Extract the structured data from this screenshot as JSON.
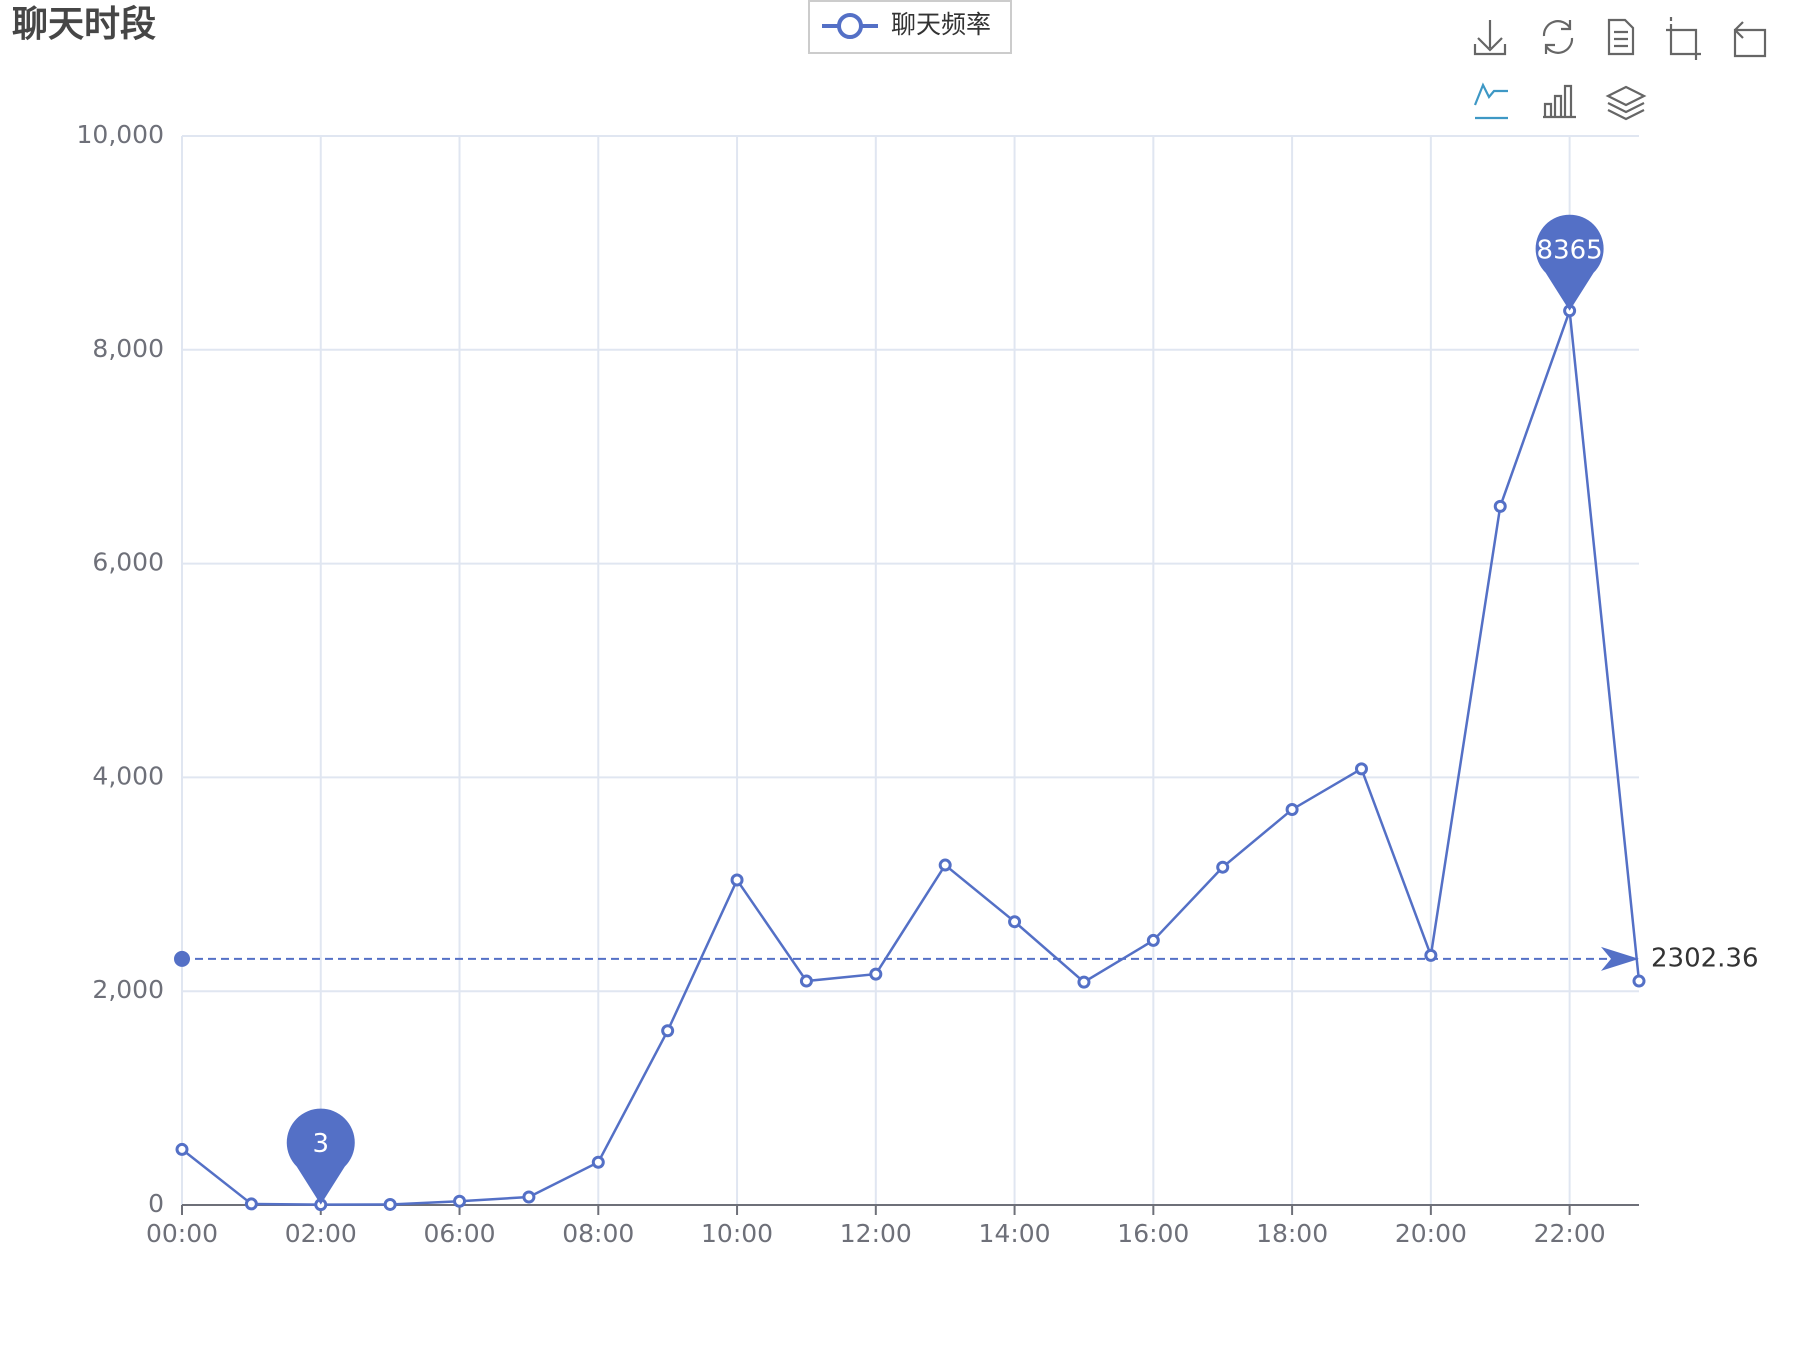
{
  "chart_data": {
    "type": "line",
    "title": "聊天时段",
    "categories": [
      "00:00",
      null,
      "02:00",
      null,
      "06:00",
      null,
      "08:00",
      null,
      "10:00",
      null,
      "12:00",
      null,
      "14:00",
      null,
      "16:00",
      null,
      "18:00",
      null,
      "20:00",
      null,
      "22:00",
      null
    ],
    "series": [
      {
        "name": "聊天频率",
        "color": "#5470c6",
        "values": [
          520,
          10,
          3,
          5,
          35,
          75,
          400,
          1630,
          3040,
          2095,
          2160,
          3180,
          2650,
          2085,
          2475,
          3160,
          3700,
          4080,
          2335,
          6535,
          8365,
          2095
        ],
        "mark_line": 2302.36
      }
    ],
    "ylim": [
      0,
      10000
    ],
    "yticks": [
      0,
      {
        "value": 2000,
        "label": "2,000"
      },
      {
        "value": 4000,
        "label": "4,000"
      },
      {
        "value": 6000,
        "label": "6,000"
      },
      {
        "value": 8000,
        "label": "8,000"
      },
      {
        "value": 10000,
        "label": "10,000"
      }
    ],
    "grid": true
  }
}
